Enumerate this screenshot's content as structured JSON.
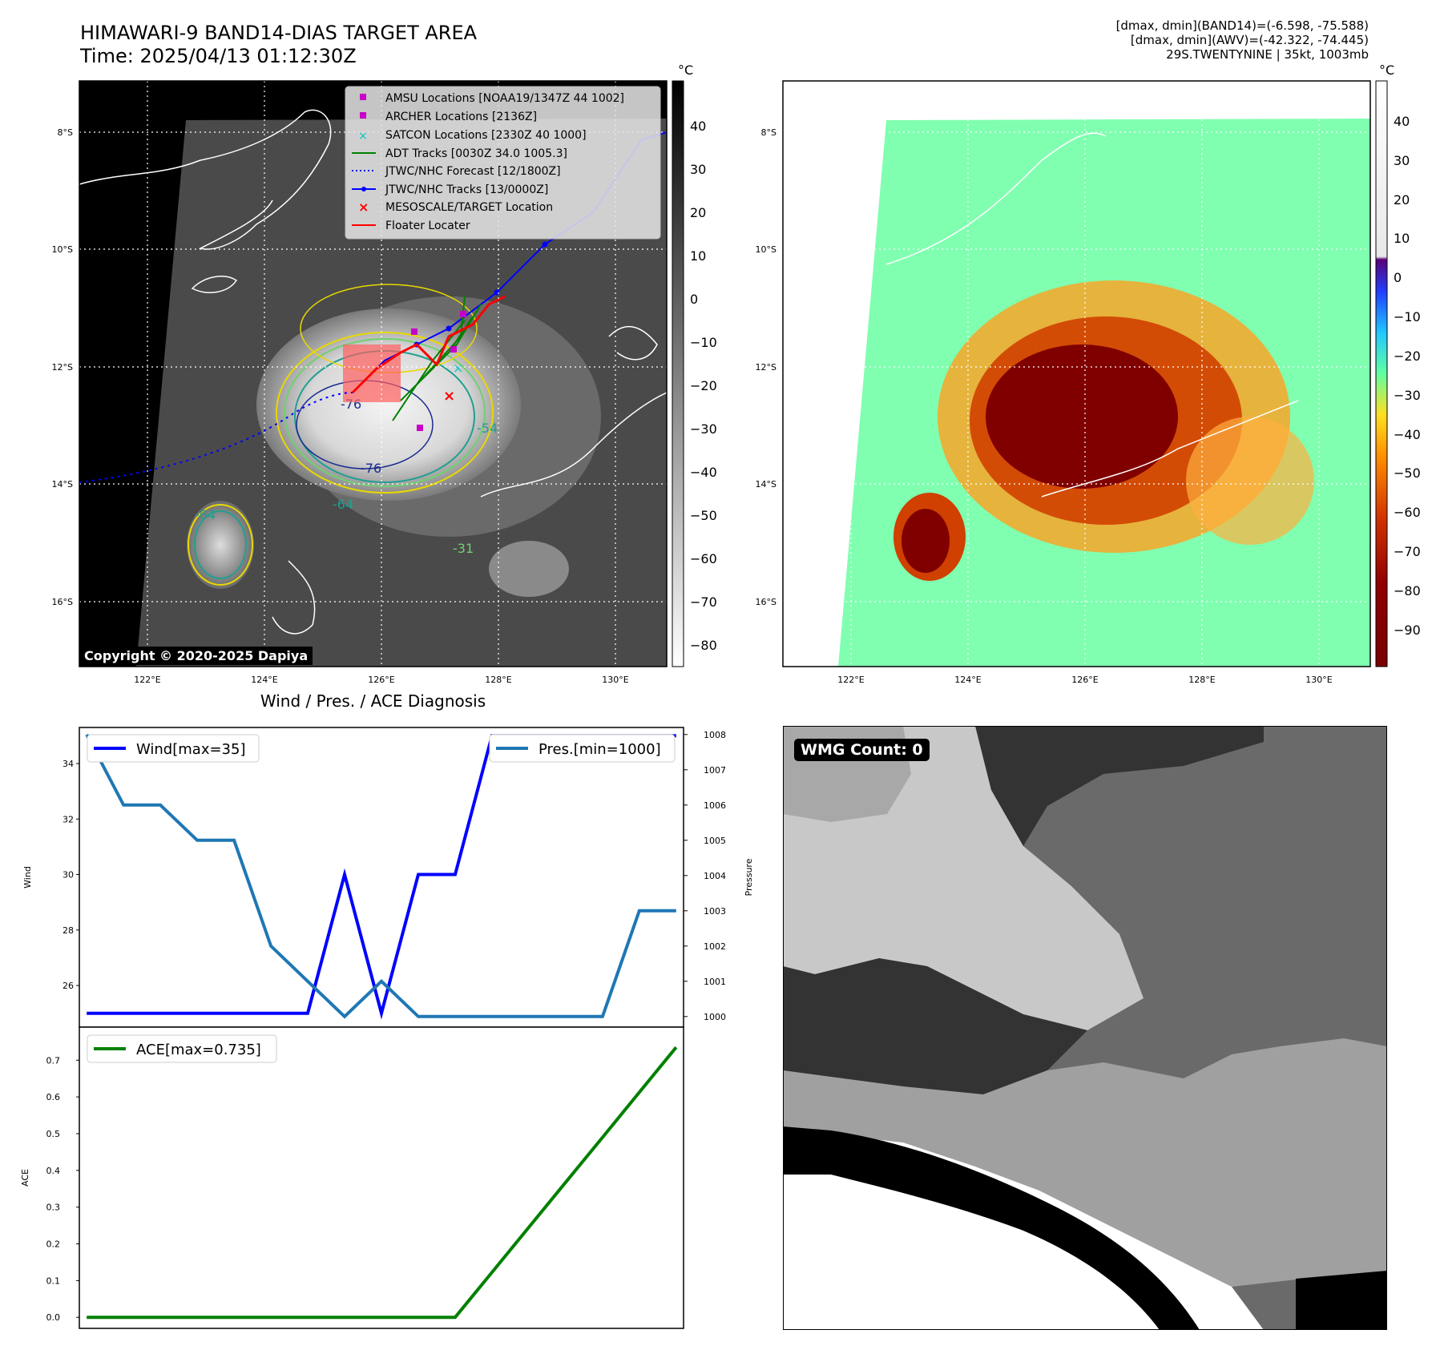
{
  "header": {
    "title_line1": "HIMAWARI-9 BAND14-DIAS TARGET AREA",
    "title_line2": "Time: 2025/04/13 01:12:30Z",
    "info_line1": "[dmax, dmin](BAND14)=(-6.598, -75.588)",
    "info_line2": "[dmax, dmin](AWV)=(-42.322, -74.445)",
    "info_line3": "29S.TWENTYNINE | 35kt, 1003mb",
    "unit": "°C",
    "copyright": "Copyright © 2020-2025 Dapiya"
  },
  "map": {
    "lat_labels": [
      "8°S",
      "10°S",
      "12°S",
      "14°S",
      "16°S"
    ],
    "lon_labels": [
      "122°E",
      "124°E",
      "126°E",
      "128°E",
      "130°E"
    ],
    "gray_colorbar_ticks": [
      "40",
      "30",
      "20",
      "10",
      "0",
      "−10",
      "−20",
      "−30",
      "−40",
      "−50",
      "−60",
      "−70",
      "−80"
    ],
    "color_colorbar_ticks": [
      "40",
      "30",
      "20",
      "10",
      "0",
      "−10",
      "−20",
      "−30",
      "−40",
      "−50",
      "−60",
      "−70",
      "−80",
      "−90"
    ],
    "contour_labels": [
      "-76",
      "-76",
      "-64",
      "-64",
      "-54",
      "-31"
    ],
    "legend": [
      {
        "label": "AMSU Locations [NOAA19/1347Z 44 1002]",
        "marker": "square",
        "color": "#c800c8"
      },
      {
        "label": "ARCHER Locations [2136Z]",
        "marker": "square",
        "color": "#c800c8"
      },
      {
        "label": "SATCON Locations [2330Z 40 1000]",
        "marker": "x",
        "color": "#00c8c8"
      },
      {
        "label": "ADT Tracks [0030Z 34.0 1005.3]",
        "marker": "line",
        "color": "#008000"
      },
      {
        "label": "JTWC/NHC Forecast [12/1800Z]",
        "marker": "dotted",
        "color": "#0000ff"
      },
      {
        "label": "JTWC/NHC Tracks [13/0000Z]",
        "marker": "line-dot",
        "color": "#0000ff"
      },
      {
        "label": "MESOSCALE/TARGET Location",
        "marker": "x",
        "color": "#ff0000"
      },
      {
        "label": "Floater Locater",
        "marker": "line",
        "color": "#ff0000"
      }
    ]
  },
  "diagnosis": {
    "title": "Wind / Pres. / ACE Diagnosis",
    "wind_ylabel": "Wind",
    "pressure_ylabel": "Pressure",
    "ace_ylabel": "ACE",
    "wind_legend": "Wind[max=35]",
    "pres_legend": "Pres.[min=1000]",
    "ace_legend": "ACE[max=0.735]",
    "wind_ticks": [
      "34",
      "32",
      "30",
      "28",
      "26"
    ],
    "pressure_ticks": [
      "1008",
      "1007",
      "1006",
      "1005",
      "1004",
      "1003",
      "1002",
      "1001",
      "1000"
    ],
    "ace_ticks": [
      "0.7",
      "0.6",
      "0.5",
      "0.4",
      "0.3",
      "0.2",
      "0.1",
      "0.0"
    ]
  },
  "wmg": {
    "label": "WMG Count: 0"
  },
  "chart_data": [
    {
      "type": "line",
      "title": "Wind / Pres. / ACE Diagnosis",
      "x": [
        0,
        1,
        2,
        3,
        4,
        5,
        6,
        7,
        8,
        9,
        10,
        11,
        12,
        13,
        14,
        15,
        16
      ],
      "series": [
        {
          "name": "Wind[max=35]",
          "axis": "left",
          "color": "#0000ff",
          "values": [
            25,
            25,
            25,
            25,
            25,
            25,
            25,
            30,
            25,
            30,
            30,
            35,
            35,
            35,
            35,
            35,
            35
          ]
        },
        {
          "name": "Pres.[min=1000]",
          "axis": "right",
          "color": "#1f77b4",
          "values": [
            1008,
            1006,
            1006,
            1005,
            1005,
            1002,
            1001,
            1000,
            1001,
            1000,
            1000,
            1000,
            1000,
            1000,
            1000,
            1003,
            1003
          ]
        }
      ],
      "ylabel": "Wind",
      "y2label": "Pressure",
      "ylim": [
        24.5,
        35.3
      ],
      "y2lim": [
        999.7,
        1008.2
      ],
      "xlim": [
        -0.2,
        16.2
      ]
    },
    {
      "type": "line",
      "x": [
        0,
        1,
        2,
        3,
        4,
        5,
        6,
        7,
        8,
        9,
        10,
        11,
        12,
        13,
        14,
        15,
        16
      ],
      "series": [
        {
          "name": "ACE[max=0.735]",
          "color": "#008000",
          "values": [
            0,
            0,
            0,
            0,
            0,
            0,
            0,
            0,
            0,
            0,
            0,
            0.1225,
            0.245,
            0.3675,
            0.49,
            0.6125,
            0.735
          ]
        }
      ],
      "ylabel": "ACE",
      "ylim": [
        -0.03,
        0.79
      ],
      "xlim": [
        -0.2,
        16.2
      ]
    }
  ]
}
